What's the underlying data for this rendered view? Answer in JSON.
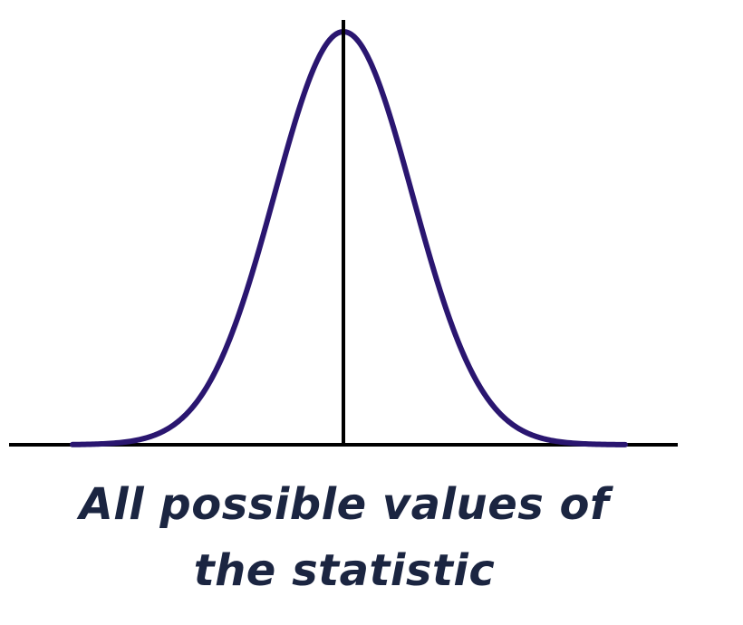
{
  "caption": {
    "line1": "All possible values of",
    "line2": "the statistic"
  },
  "colors": {
    "curve": "#2a1670",
    "axis": "#000000",
    "text": "#1b2541"
  }
}
